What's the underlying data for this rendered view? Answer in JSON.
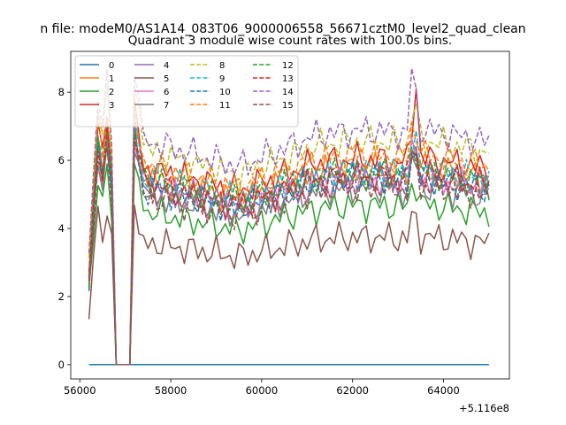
{
  "chart_data": {
    "type": "line",
    "suptitle": "n file: modeM0/AS1A14_083T06_9000006558_56671cztM0_level2_quad_clean",
    "title": "Quadrant 3 module wise count rates with 100.0s bins.",
    "xlabel": "",
    "ylabel": "",
    "x_offset_label": "+5.116e8",
    "xlim": [
      55800,
      65450
    ],
    "ylim": [
      -0.42,
      9.2
    ],
    "x_ticks": [
      56000,
      58000,
      60000,
      62000,
      64000
    ],
    "x_tick_labels": [
      "56000",
      "58000",
      "60000",
      "62000",
      "64000"
    ],
    "y_ticks": [
      0,
      2,
      4,
      6,
      8
    ],
    "y_tick_labels": [
      "0",
      "2",
      "4",
      "6",
      "8"
    ],
    "legend_position": "top-left",
    "legend_columns": 4,
    "x_start": 56200,
    "x_end": 65000,
    "x_step": 100,
    "series": [
      {
        "name": "0",
        "color": "#1f77b4",
        "dash": "solid"
      },
      {
        "name": "1",
        "color": "#ff7f0e",
        "dash": "solid"
      },
      {
        "name": "2",
        "color": "#2ca02c",
        "dash": "solid"
      },
      {
        "name": "3",
        "color": "#d62728",
        "dash": "solid"
      },
      {
        "name": "4",
        "color": "#9467bd",
        "dash": "solid"
      },
      {
        "name": "5",
        "color": "#8c564b",
        "dash": "solid"
      },
      {
        "name": "6",
        "color": "#e377c2",
        "dash": "solid"
      },
      {
        "name": "7",
        "color": "#7f7f7f",
        "dash": "solid"
      },
      {
        "name": "8",
        "color": "#bcbd22",
        "dash": "dashed"
      },
      {
        "name": "9",
        "color": "#17becf",
        "dash": "dashed"
      },
      {
        "name": "10",
        "color": "#1f77b4",
        "dash": "dashed"
      },
      {
        "name": "11",
        "color": "#ff7f0e",
        "dash": "dashed"
      },
      {
        "name": "12",
        "color": "#2ca02c",
        "dash": "dashed"
      },
      {
        "name": "13",
        "color": "#d62728",
        "dash": "dashed"
      },
      {
        "name": "14",
        "color": "#9467bd",
        "dash": "dashed"
      },
      {
        "name": "15",
        "color": "#8c564b",
        "dash": "dashed"
      }
    ]
  }
}
